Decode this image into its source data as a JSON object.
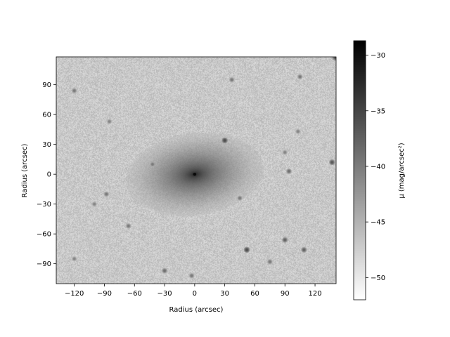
{
  "chart_data": {
    "type": "heatmap",
    "image_description_free": true,
    "xlabel": "Radius (arcsec)",
    "ylabel": "Radius (arcsec)",
    "xlim": [
      -138,
      141
    ],
    "ylim": [
      -110,
      118
    ],
    "x_ticks": [
      -120,
      -90,
      -60,
      -30,
      0,
      30,
      60,
      90,
      120
    ],
    "y_ticks": [
      -90,
      -60,
      -30,
      0,
      30,
      60,
      90
    ],
    "colorbar": {
      "label": "μ (mag/arcsec²)",
      "range": [
        -52,
        -28.7
      ],
      "ticks": [
        -50,
        -45,
        -40,
        -35,
        -30
      ],
      "colormap": "Greys",
      "low_color": "#ffffff",
      "high_color": "#000000"
    },
    "galaxy": {
      "center": [
        0,
        0
      ],
      "major_radius": 60,
      "minor_radius": 36,
      "position_angle_deg": 8,
      "peak_mag": -29.5,
      "background_mag": -47
    },
    "stars": [
      {
        "x": 30,
        "y": 34,
        "mag": -36
      },
      {
        "x": 37,
        "y": 95,
        "mag": -40
      },
      {
        "x": 105,
        "y": 98,
        "mag": -40
      },
      {
        "x": 137,
        "y": 12,
        "mag": -37
      },
      {
        "x": 94,
        "y": 3,
        "mag": -39
      },
      {
        "x": 90,
        "y": -66,
        "mag": -38
      },
      {
        "x": 109,
        "y": -76,
        "mag": -38
      },
      {
        "x": 52,
        "y": -76,
        "mag": -36
      },
      {
        "x": 75,
        "y": -88,
        "mag": -40
      },
      {
        "x": -30,
        "y": -97,
        "mag": -39
      },
      {
        "x": -66,
        "y": -52,
        "mag": -40
      },
      {
        "x": -88,
        "y": -20,
        "mag": -40
      },
      {
        "x": -100,
        "y": -30,
        "mag": -41
      },
      {
        "x": -120,
        "y": 84,
        "mag": -40
      },
      {
        "x": -85,
        "y": 53,
        "mag": -41
      },
      {
        "x": -42,
        "y": 10,
        "mag": -40
      },
      {
        "x": 45,
        "y": -24,
        "mag": -40
      },
      {
        "x": 103,
        "y": 43,
        "mag": -41
      },
      {
        "x": 90,
        "y": 22,
        "mag": -41
      },
      {
        "x": 140,
        "y": 117,
        "mag": -38
      },
      {
        "x": -120,
        "y": -85,
        "mag": -41
      },
      {
        "x": -3,
        "y": -102,
        "mag": -40
      }
    ]
  }
}
